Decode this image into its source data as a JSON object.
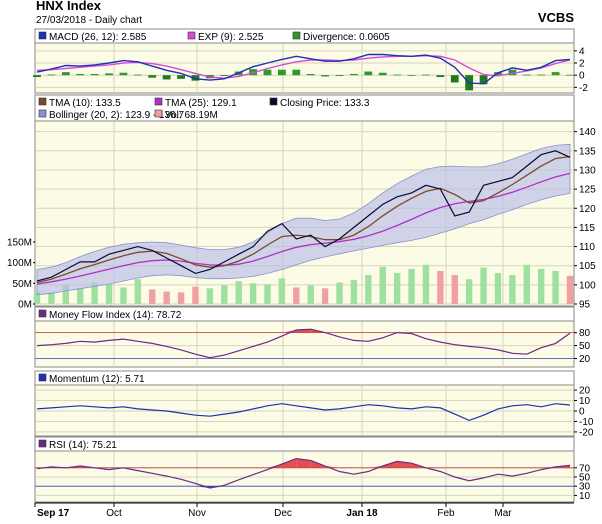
{
  "header": {
    "title": "HNX Index",
    "subtitle": "27/03/2018 - Daily chart",
    "brand": "VCBS"
  },
  "colors": {
    "panel_bg": "#fbfbe6",
    "grid": "#d6d6bd",
    "macd": "#1f2fb8",
    "exp": "#d84ad8",
    "divergence_pos": "#2e9a2e",
    "divergence_neg": "#1e7a1e",
    "tma10": "#7a4a2a",
    "tma25": "#b030c8",
    "close": "#0a0a30",
    "bollinger_fill": "#b8bce8",
    "bollinger_line": "#8a90d0",
    "vol_up": "#9ee09e",
    "vol_down": "#f0a0a0",
    "mfi": "#6a2a8a",
    "mfi_fill": "#e05050",
    "momentum": "#2030b0",
    "rsi": "#6a2a8a",
    "rsi_fill_high": "#e05050",
    "rsi_fill_low": "#3040c0"
  },
  "chart_data": {
    "type": "line",
    "x_ticks": [
      "Sep 17",
      "Oct",
      "Nov",
      "Dec",
      "Jan 18",
      "Feb",
      "Mar"
    ],
    "panels": [
      {
        "id": "macd",
        "legend": [
          {
            "text": "MACD (26, 12): 2.585",
            "color": "#1f2fb8"
          },
          {
            "text": "EXP (9): 2.525",
            "color": "#d84ad8"
          },
          {
            "text": "Divergence: 0.0605",
            "color": "#2e9a2e"
          }
        ],
        "y_ticks": [
          "4",
          "2",
          "0",
          "-2"
        ],
        "ylim": [
          -2.6,
          4.8
        ],
        "series": [
          {
            "name": "MACD (26, 12)",
            "values": [
              0.5,
              1,
              1.6,
              1.5,
              1.7,
              2,
              2.4,
              2.2,
              1.5,
              0.8,
              0.3,
              -0.6,
              -0.8,
              -0.6,
              0.4,
              1.4,
              2,
              2.6,
              3.1,
              2.7,
              2.3,
              2.3,
              2.7,
              3.4,
              3.4,
              3.2,
              3.1,
              3.3,
              2.8,
              1.3,
              -1.3,
              -1.4,
              0.4,
              1.2,
              0.8,
              1.3,
              2.4,
              2.585
            ]
          },
          {
            "name": "EXP (9)",
            "values": [
              0.8,
              0.9,
              1.1,
              1.3,
              1.5,
              1.7,
              2,
              2.1,
              1.9,
              1.5,
              0.9,
              0.3,
              -0.3,
              -0.5,
              -0.2,
              0.4,
              1.1,
              1.7,
              2.2,
              2.5,
              2.5,
              2.4,
              2.5,
              2.8,
              3,
              3.1,
              3.1,
              3.2,
              3.1,
              2.5,
              1.2,
              0.1,
              -0.1,
              0.3,
              0.7,
              1.2,
              1.9,
              2.525
            ]
          },
          {
            "name": "Divergence",
            "values": [
              -0.3,
              0.1,
              0.5,
              0.2,
              0.2,
              0.3,
              0.4,
              0.1,
              -0.4,
              -0.7,
              -0.6,
              -0.9,
              -0.5,
              -0.1,
              0.6,
              1,
              0.9,
              0.9,
              0.9,
              0.2,
              -0.2,
              -0.1,
              0.2,
              0.6,
              0.4,
              0.1,
              0,
              0.1,
              -0.3,
              -1.2,
              -2.5,
              -1.5,
              0.5,
              0.9,
              0.1,
              0.1,
              0.5,
              0.0605
            ]
          }
        ]
      },
      {
        "id": "price",
        "legend": [
          {
            "text": "TMA (10): 133.5",
            "color": "#7a4a2a"
          },
          {
            "text": "TMA (25): 129.1",
            "color": "#b030c8"
          },
          {
            "text": "Closing Price: 133.3",
            "color": "#0a0a30"
          },
          {
            "text": "Bollinger (20, 2): 123.9 - 136.7",
            "color": "#8a90d0"
          },
          {
            "text": "Vol: 68.19M",
            "color": "#f0a0a0"
          }
        ],
        "y_ticks": [
          "140",
          "135",
          "130",
          "125",
          "120",
          "115",
          "110",
          "105",
          "100",
          "95"
        ],
        "ylim": [
          95,
          142
        ],
        "volume_ticks": [
          "150M",
          "100M",
          "50M",
          "0M"
        ],
        "volume_max": 150,
        "series": [
          {
            "name": "Closing Price",
            "values": [
              101,
              102,
              104,
              106,
              106,
              108,
              109,
              110,
              109,
              107,
              105,
              103,
              104,
              106,
              108,
              110,
              114,
              116,
              112,
              113,
              110,
              112,
              115,
              118,
              121,
              123,
              124,
              126,
              125,
              118,
              119,
              126,
              127,
              128,
              131,
              134,
              135,
              133.3
            ]
          },
          {
            "name": "TMA (10)",
            "values": [
              100.6,
              101.5,
              102.8,
              104.2,
              105.3,
              106.5,
              107.6,
              108.5,
              108.8,
              108.2,
              106.8,
              105.2,
              104.6,
              105,
              106.2,
              108,
              110.4,
              112.6,
              113,
              112.6,
              111.8,
              111.8,
              113,
              115.2,
              118,
              120.5,
              122.6,
              124.4,
              125.2,
              123.6,
              121.4,
              122,
              124,
              126.2,
              128.6,
              131,
              133,
              133.5
            ]
          },
          {
            "name": "TMA (25)",
            "values": [
              100.2,
              100.8,
              101.5,
              102.3,
              103.2,
              104.1,
              105,
              105.8,
              106.3,
              106.5,
              106.2,
              105.6,
              105.2,
              105.1,
              105.4,
              106.2,
              107.4,
              108.7,
              109.8,
              110.5,
              110.9,
              111.3,
              111.9,
              112.8,
              114,
              115.5,
              117.1,
              118.8,
              120.2,
              121.2,
              121.8,
              122.3,
              123.1,
              124.2,
              125.5,
              126.9,
              128.2,
              129.1
            ]
          },
          {
            "name": "Bollinger upper",
            "values": [
              104,
              104.6,
              105.8,
              107.4,
              108.7,
              109.8,
              110.6,
              111,
              111.2,
              111,
              110.4,
              109.7,
              109.2,
              109.2,
              109.8,
              111.2,
              113.6,
              116,
              117.4,
              117.4,
              116.8,
              117.2,
              118.8,
              121.2,
              124,
              126.4,
              128.4,
              130.2,
              130.9,
              131,
              130.8,
              130.8,
              131.6,
              132.8,
              134.2,
              135.6,
              136.4,
              136.7
            ]
          },
          {
            "name": "Bollinger lower",
            "values": [
              97.4,
              97.8,
              98.4,
              99,
              99.6,
              100.2,
              101,
              101.8,
              102.4,
              102.6,
              102.4,
              101.9,
              101.6,
              101.6,
              101.8,
              102.2,
              103,
              104,
              105.2,
              106.4,
              107.3,
              108.1,
              108.9,
              109.6,
              110.3,
              111,
              111.6,
              112.4,
              113.5,
              114.6,
              116,
              117,
              118.4,
              119.6,
              121,
              122.2,
              123.2,
              123.9
            ]
          },
          {
            "name": "Vol",
            "values": [
              30,
              28,
              45,
              38,
              52,
              48,
              40,
              60,
              35,
              30,
              28,
              42,
              38,
              45,
              55,
              50,
              48,
              62,
              40,
              45,
              38,
              52,
              58,
              70,
              90,
              75,
              85,
              95,
              80,
              70,
              60,
              88,
              75,
              70,
              95,
              85,
              80,
              68.19
            ]
          }
        ]
      },
      {
        "id": "mfi",
        "legend": [
          {
            "text": "Money Flow Index (14): 78.72",
            "color": "#6a2a8a"
          }
        ],
        "y_ticks": [
          "80",
          "50",
          "20"
        ],
        "ylim": [
          5,
          100
        ],
        "series": [
          {
            "name": "Money Flow Index (14)",
            "values": [
              50,
              52,
              55,
              60,
              58,
              62,
              65,
              60,
              55,
              48,
              40,
              30,
              22,
              28,
              38,
              48,
              58,
              72,
              86,
              88,
              80,
              70,
              62,
              60,
              68,
              80,
              78,
              66,
              58,
              52,
              48,
              45,
              40,
              32,
              30,
              45,
              55,
              78.72
            ]
          }
        ]
      },
      {
        "id": "momentum",
        "legend": [
          {
            "text": "Momentum (12): 5.71",
            "color": "#2030b0"
          }
        ],
        "y_ticks": [
          "20",
          "10",
          "0",
          "-10",
          "-20"
        ],
        "ylim": [
          -22,
          22
        ],
        "series": [
          {
            "name": "Momentum (12)",
            "values": [
              2,
              3,
              4,
              5,
              4,
              3,
              4,
              2,
              1,
              0,
              -2,
              -4,
              -5,
              -3,
              -1,
              2,
              5,
              7,
              5,
              3,
              1,
              2,
              4,
              6,
              5,
              3,
              2,
              4,
              3,
              -3,
              -9,
              -4,
              2,
              5,
              6,
              4,
              7,
              5.71
            ]
          }
        ]
      },
      {
        "id": "rsi",
        "legend": [
          {
            "text": "RSI (14): 75.21",
            "color": "#6a2a8a"
          }
        ],
        "y_ticks": [
          "70",
          "50",
          "30",
          "10"
        ],
        "ylim": [
          0,
          100
        ],
        "series": [
          {
            "name": "RSI (14)",
            "values": [
              68,
              72,
              70,
              74,
              70,
              66,
              70,
              64,
              58,
              52,
              45,
              36,
              26,
              32,
              44,
              55,
              66,
              78,
              90,
              86,
              74,
              62,
              56,
              62,
              74,
              84,
              80,
              70,
              62,
              50,
              42,
              48,
              56,
              52,
              58,
              66,
              72,
              75.21
            ]
          }
        ]
      }
    ]
  }
}
